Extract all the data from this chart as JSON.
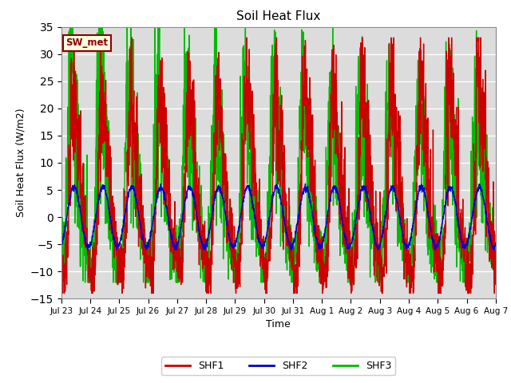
{
  "title": "Soil Heat Flux",
  "ylabel": "Soil Heat Flux (W/m2)",
  "xlabel": "Time",
  "ylim": [
    -15,
    35
  ],
  "annotation_text": "SW_met",
  "annotation_color": "#8B0000",
  "annotation_bg": "#FFFFE0",
  "background_color": "#DCDCDC",
  "shf1_color": "#CC0000",
  "shf2_color": "#0000CC",
  "shf3_color": "#00BB00",
  "legend_labels": [
    "SHF1",
    "SHF2",
    "SHF3"
  ],
  "x_tick_labels": [
    "Jul 23",
    "Jul 24",
    "Jul 25",
    "Jul 26",
    "Jul 27",
    "Jul 28",
    "Jul 29",
    "Jul 30",
    "Jul 31",
    "Aug 1",
    "Aug 2",
    "Aug 3",
    "Aug 4",
    "Aug 5",
    "Aug 6",
    "Aug 7"
  ],
  "num_days": 15,
  "points_per_day": 144
}
